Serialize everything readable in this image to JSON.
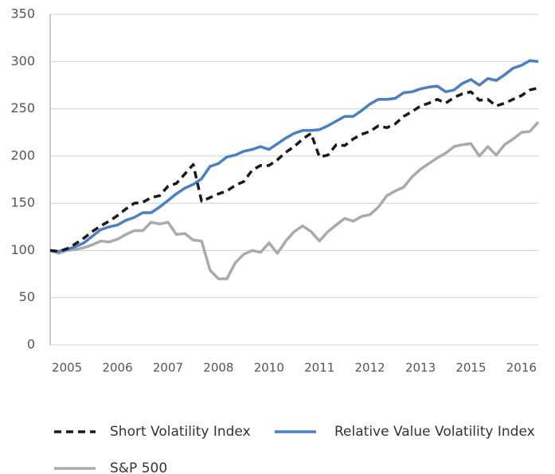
{
  "chart_data": {
    "type": "line",
    "categories": [
      null,
      null,
      "2005",
      null,
      null,
      null,
      null,
      null,
      "2006",
      null,
      null,
      null,
      null,
      null,
      "2007",
      null,
      null,
      null,
      null,
      null,
      "2008",
      null,
      null,
      null,
      null,
      null,
      "2010",
      null,
      null,
      null,
      null,
      null,
      "2011",
      null,
      null,
      null,
      null,
      null,
      "2012",
      null,
      null,
      null,
      null,
      null,
      "2013",
      null,
      null,
      null,
      null,
      null,
      "2015",
      null,
      null,
      null,
      null,
      null,
      "2016",
      null,
      null
    ],
    "series": [
      {
        "name": "Short Volatility Index",
        "color": "#1a1a1a",
        "dash": true,
        "values": [
          100,
          99,
          102,
          107,
          113,
          120,
          126,
          131,
          137,
          144,
          150,
          151,
          156,
          158,
          168,
          171,
          181,
          191,
          152,
          156,
          160,
          163,
          169,
          173,
          185,
          190,
          190,
          196,
          204,
          210,
          218,
          224,
          199,
          201,
          212,
          211,
          218,
          223,
          226,
          232,
          230,
          234,
          242,
          247,
          253,
          256,
          260,
          256,
          262,
          266,
          268,
          259,
          260,
          253,
          256,
          260,
          264,
          270,
          272
        ]
      },
      {
        "name": "Relative Value Volatility Index",
        "color": "#4a7fc1",
        "values": [
          100,
          99,
          101,
          104,
          108,
          115,
          122,
          125,
          127,
          132,
          135,
          140,
          140,
          146,
          153,
          160,
          166,
          170,
          176,
          189,
          192,
          199,
          201,
          205,
          207,
          210,
          207,
          213,
          219,
          224,
          227,
          227,
          228,
          232,
          237,
          242,
          242,
          248,
          255,
          260,
          260,
          261,
          267,
          268,
          271,
          273,
          274,
          268,
          270,
          277,
          281,
          275,
          282,
          280,
          286,
          293,
          296,
          301,
          300
        ]
      },
      {
        "name": "S&P 500",
        "color": "#aaaaaa",
        "values": [
          100,
          97,
          100,
          101,
          103,
          106,
          110,
          109,
          112,
          117,
          121,
          121,
          130,
          128,
          130,
          117,
          118,
          111,
          110,
          79,
          70,
          70,
          87,
          96,
          100,
          98,
          108,
          97,
          110,
          120,
          126,
          120,
          110,
          120,
          127,
          134,
          131,
          136,
          138,
          146,
          158,
          163,
          167,
          178,
          186,
          192,
          198,
          203,
          210,
          212,
          213,
          200,
          210,
          201,
          212,
          218,
          225,
          226,
          236
        ]
      }
    ],
    "ylim": [
      0,
      350
    ],
    "yticks": [
      0,
      50,
      100,
      150,
      200,
      250,
      300,
      350
    ],
    "grid": true
  }
}
